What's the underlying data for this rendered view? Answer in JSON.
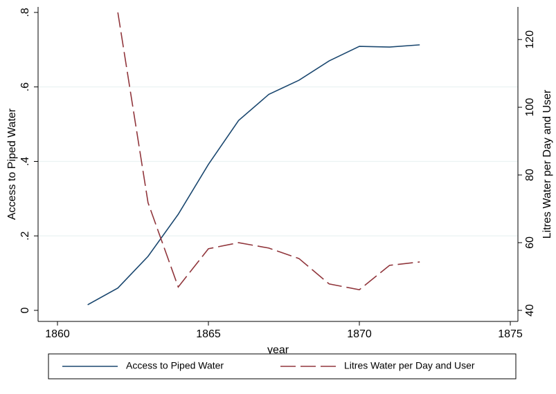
{
  "chart_data": {
    "type": "line",
    "x": [
      1861,
      1862,
      1863,
      1864,
      1865,
      1866,
      1867,
      1868,
      1869,
      1870,
      1871,
      1872
    ],
    "series": [
      {
        "name": "Access to Piped Water",
        "color": "#1a476f",
        "dash": "solid",
        "values": [
          0.015,
          0.06,
          0.145,
          0.258,
          0.392,
          0.51,
          0.58,
          0.618,
          0.67,
          0.709,
          0.707,
          0.713
        ]
      },
      {
        "name": "Litres Water per Day and User",
        "color": "#90353b",
        "dash": "dashed",
        "axis": "y2",
        "values": [
          null,
          128,
          71.8,
          46.9,
          58.2,
          60,
          58.4,
          55.3,
          47.8,
          46.1,
          53.3,
          54.3
        ]
      }
    ],
    "xlabel": "year",
    "ylabel": "Access to Piped Water",
    "y2label": "Litres Water per Day and User",
    "xlim": [
      1860,
      1875
    ],
    "xticks": [
      1860,
      1865,
      1870,
      1875
    ],
    "ylim": [
      0,
      0.8
    ],
    "yticks": [
      0,
      {
        "value": 0.2,
        "label": ".2"
      },
      {
        "value": 0.4,
        "label": ".4"
      },
      {
        "value": 0.6,
        "label": ".6"
      },
      {
        "value": 0.8,
        "label": ".8"
      }
    ],
    "y2lim": [
      40,
      128
    ],
    "y2ticks": [
      40,
      60,
      80,
      100,
      120
    ],
    "grid": true,
    "legend": "bottom"
  }
}
